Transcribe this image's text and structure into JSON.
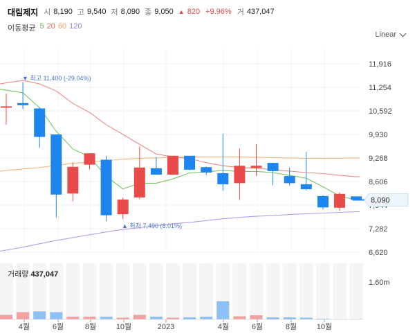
{
  "header": {
    "stock_name": "대림제지",
    "open_label": "시",
    "open": "8,190",
    "high_label": "고",
    "high": "9,540",
    "low_label": "저",
    "low": "8,090",
    "close_label": "종",
    "close": "9,050",
    "change": "820",
    "change_pct": "+9.96%",
    "volume_label": "거",
    "volume": "437,047"
  },
  "moving_average": {
    "title": "이동평균",
    "periods": [
      {
        "label": "5",
        "color": "#5fb84a"
      },
      {
        "label": "20",
        "color": "#e06b68"
      },
      {
        "label": "60",
        "color": "#e8a35a"
      },
      {
        "label": "120",
        "color": "#9b7fe0"
      }
    ]
  },
  "scale_selector": {
    "label": "Linear"
  },
  "price_axis": [
    "11,916",
    "11,254",
    "10,592",
    "9,930",
    "9,268",
    "8,606",
    "7,944",
    "7,282",
    "6,620"
  ],
  "current_price_tag": "8,090",
  "annotations": {
    "high": "최고 11,400 (-29.04%)",
    "low": "최저 7,490 (8.01%)"
  },
  "volume": {
    "label": "거래량",
    "value": "437,047",
    "axis": [
      "1.60m"
    ]
  },
  "time_axis": [
    "4월",
    "6월",
    "8월",
    "10월",
    "2023",
    "4월",
    "6월",
    "8월",
    "10월"
  ],
  "colors": {
    "up": "#e94b4b",
    "down": "#1c86ee",
    "grid": "#eeeeee"
  },
  "chart_data": {
    "type": "candlestick",
    "y_ticks": [
      11916,
      11254,
      10592,
      9930,
      9268,
      8606,
      7944,
      7282,
      6620
    ],
    "candles": [
      {
        "open": 10720,
        "high": 11080,
        "low": 10200,
        "close": 10720
      },
      {
        "open": 10810,
        "high": 11400,
        "low": 10640,
        "close": 10750
      },
      {
        "open": 10660,
        "high": 10690,
        "low": 9550,
        "close": 9860
      },
      {
        "open": 9930,
        "high": 9930,
        "low": 7600,
        "close": 8240
      },
      {
        "open": 8270,
        "high": 9150,
        "low": 8050,
        "close": 9020
      },
      {
        "open": 9080,
        "high": 9380,
        "low": 8950,
        "close": 9400
      },
      {
        "open": 9220,
        "high": 9330,
        "low": 7490,
        "close": 7660
      },
      {
        "open": 7690,
        "high": 8150,
        "low": 7550,
        "close": 8100
      },
      {
        "open": 8160,
        "high": 9590,
        "low": 8110,
        "close": 9000
      },
      {
        "open": 8980,
        "high": 9300,
        "low": 8800,
        "close": 8800
      },
      {
        "open": 8800,
        "high": 9330,
        "low": 8790,
        "close": 9330
      },
      {
        "open": 9330,
        "high": 9310,
        "low": 8920,
        "close": 8940
      },
      {
        "open": 9010,
        "high": 9030,
        "low": 8790,
        "close": 8860
      },
      {
        "open": 8840,
        "high": 9950,
        "low": 8350,
        "close": 8530
      },
      {
        "open": 8560,
        "high": 9540,
        "low": 8090,
        "close": 9050
      },
      {
        "open": 8990,
        "high": 9660,
        "low": 8760,
        "close": 9050
      },
      {
        "open": 9130,
        "high": 9140,
        "low": 8500,
        "close": 8900
      },
      {
        "open": 8760,
        "high": 9000,
        "low": 8500,
        "close": 8560
      },
      {
        "open": 8530,
        "high": 9440,
        "low": 8360,
        "close": 8390
      },
      {
        "open": 8200,
        "high": 8220,
        "low": 7820,
        "close": 7880
      },
      {
        "open": 7870,
        "high": 8300,
        "low": 7780,
        "close": 8260
      },
      {
        "open": 8190,
        "high": 8190,
        "low": 8090,
        "close": 8090
      }
    ],
    "ma5": [
      11200,
      11100,
      10680,
      10020,
      9520,
      9300,
      8750,
      8400,
      8560,
      8560,
      8680,
      8850,
      8880,
      8920,
      8890,
      8890,
      8860,
      8780,
      8700,
      8460,
      8200,
      8090
    ],
    "ma20": [
      11350,
      11450,
      11350,
      11150,
      10800,
      10550,
      10200,
      9930,
      9650,
      9380,
      9300,
      9250,
      9140,
      9050,
      9000,
      8980,
      8940,
      8900,
      8860,
      8830,
      8780,
      8740
    ],
    "ma60": [
      8900,
      8960,
      9000,
      9060,
      9120,
      9150,
      9200,
      9230,
      9260,
      9270,
      9290,
      9300,
      9300,
      9300,
      9300,
      9290,
      9280,
      9270,
      9260,
      9260,
      9260,
      9270
    ],
    "ma120": [
      6650,
      6760,
      6860,
      6950,
      7030,
      7110,
      7190,
      7260,
      7310,
      7370,
      7420,
      7460,
      7510,
      7560,
      7600,
      7630,
      7650,
      7680,
      7700,
      7720,
      7740,
      7760
    ],
    "volumes": [
      0.13,
      0.21,
      0.23,
      0.21,
      0.08,
      0.08,
      0.08,
      0.05,
      0.13,
      0.08,
      0.05,
      0.06,
      0.08,
      0.52,
      0.09,
      0.12,
      0.06,
      0.06,
      0.05,
      0.02,
      0.01,
      0.01
    ],
    "volume_max": 1.6,
    "volume_colors": [
      "up",
      "up",
      "down",
      "down",
      "up",
      "up",
      "down",
      "up",
      "up",
      "down",
      "up",
      "down",
      "down",
      "down",
      "up",
      "up",
      "down",
      "down",
      "down",
      "down",
      "up",
      "down"
    ]
  }
}
